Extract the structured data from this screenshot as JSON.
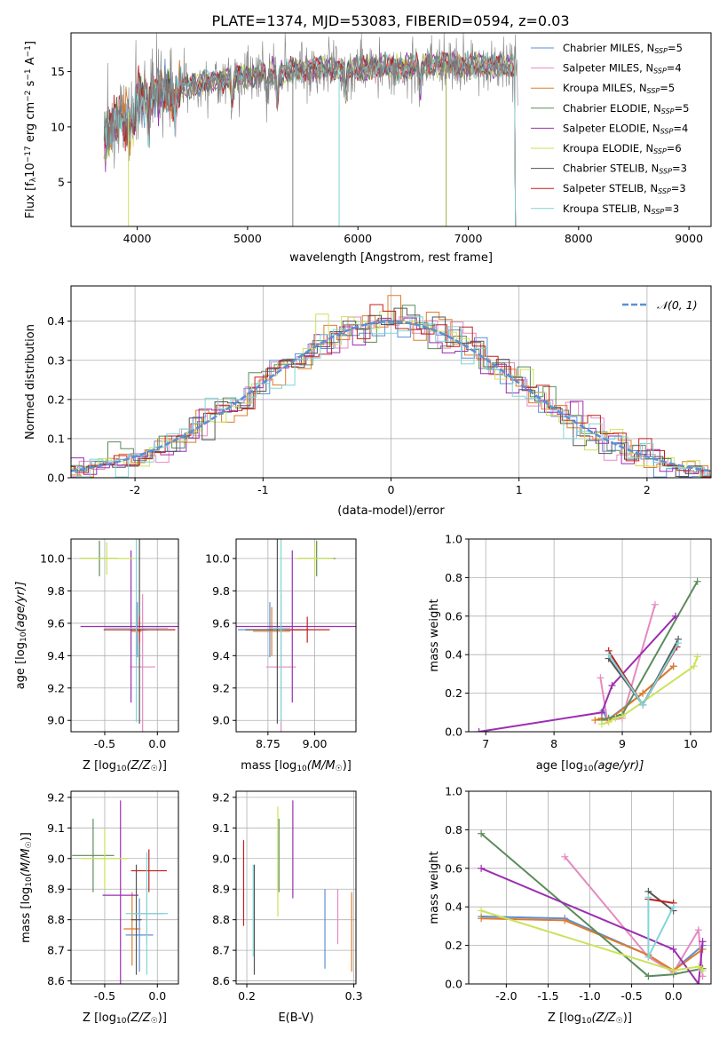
{
  "figure_title": "PLATE=1374, MJD=53083, FIBERID=0594, z=0.03",
  "colors": {
    "chabrier_miles": "#5b8fd6",
    "salpeter_miles": "#e48bc0",
    "kroupa_miles": "#e07b2a",
    "chabrier_elodie": "#5c8c5c",
    "salpeter_elodie": "#9b2fb0",
    "kroupa_elodie": "#cce25a",
    "chabrier_stelib": "#555555",
    "salpeter_stelib": "#c0201e",
    "kroupa_stelib": "#7fd6d8"
  },
  "chart_data": [
    {
      "type": "line",
      "title": "PLATE=1374, MJD=53083, FIBERID=0594, z=0.03",
      "xlabel": "wavelength [Angstrom, rest frame]",
      "ylabel_main": "Flux [f",
      "ylabel_sub": "λ",
      "ylabel_rest": "10",
      "ylabel_exp1": "−17",
      "ylabel_units": " erg cm",
      "ylabel_exp2": "−2",
      "ylabel_s": " s",
      "ylabel_exp3": "−1",
      "ylabel_a": " A",
      "ylabel_exp4": "−1",
      "ylabel_end": "]",
      "xlim": [
        3400,
        9200
      ],
      "ylim": [
        1,
        18.5
      ],
      "xticks": [
        4000,
        5000,
        6000,
        7000,
        8000,
        9000
      ],
      "yticks": [
        5,
        10,
        15
      ],
      "grid": false,
      "legend_position": "top-right",
      "legend": [
        {
          "label": "Chabrier MILES, N",
          "sub": "SSP",
          "suffix": "=5",
          "color_key": "chabrier_miles"
        },
        {
          "label": "Salpeter MILES, N",
          "sub": "SSP",
          "suffix": "=4",
          "color_key": "salpeter_miles"
        },
        {
          "label": "Kroupa MILES, N",
          "sub": "SSP",
          "suffix": "=5",
          "color_key": "kroupa_miles"
        },
        {
          "label": "Chabrier ELODIE, N",
          "sub": "SSP",
          "suffix": "=5",
          "color_key": "chabrier_elodie"
        },
        {
          "label": "Salpeter ELODIE, N",
          "sub": "SSP",
          "suffix": "=4",
          "color_key": "salpeter_elodie"
        },
        {
          "label": "Kroupa ELODIE, N",
          "sub": "SSP",
          "suffix": "=6",
          "color_key": "kroupa_elodie"
        },
        {
          "label": "Chabrier STELIB, N",
          "sub": "SSP",
          "suffix": "=3",
          "color_key": "chabrier_stelib"
        },
        {
          "label": "Salpeter STELIB, N",
          "sub": "SSP",
          "suffix": "=3",
          "color_key": "salpeter_stelib"
        },
        {
          "label": "Kroupa STELIB, N",
          "sub": "SSP",
          "suffix": "=3",
          "color_key": "kroupa_stelib"
        }
      ],
      "continuum": {
        "x": [
          3700,
          3800,
          3900,
          4000,
          4100,
          4200,
          4300,
          4400,
          4600,
          4800,
          5000,
          5200,
          5400,
          5600,
          5800,
          6000,
          6200,
          6400,
          6600,
          6800,
          7000,
          7200,
          7400
        ],
        "y": [
          9.0,
          10.5,
          11.0,
          12.5,
          12.8,
          13.3,
          12.8,
          13.6,
          14.0,
          14.3,
          14.6,
          14.8,
          15.0,
          15.3,
          15.3,
          15.2,
          15.5,
          15.3,
          15.6,
          15.7,
          15.5,
          15.6,
          15.4
        ]
      }
    },
    {
      "type": "histogram",
      "xlabel": "(data-model)/error",
      "ylabel": "Normed distribution",
      "xlim": [
        -2.5,
        2.5
      ],
      "ylim": [
        0,
        0.49
      ],
      "xticks": [
        -2,
        -1,
        0,
        1,
        2
      ],
      "yticks": [
        0.0,
        0.1,
        0.2,
        0.3,
        0.4
      ],
      "grid": true,
      "legend_position": "top-right",
      "legend_label": "𝒩(0, 1)",
      "gaussian": {
        "mean": 0,
        "sigma": 1,
        "color": "#5b8fd6"
      }
    },
    {
      "type": "errorbar",
      "xlabel": "Z [log",
      "xlabel_sub": "10",
      "xlabel_rest": "(Z/Z",
      "xlabel_sun": "☉",
      "xlabel_end": ")]",
      "ylabel": "age  [log",
      "ylabel_sub": "10",
      "ylabel_rest": "(age/yr)]",
      "xlim": [
        -0.82,
        0.2
      ],
      "ylim": [
        8.93,
        10.12
      ],
      "xticks": [
        -0.5,
        0.0
      ],
      "yticks": [
        9.0,
        9.2,
        9.4,
        9.6,
        9.8,
        10.0
      ],
      "grid": true,
      "points": [
        {
          "color_key": "chabrier_miles",
          "x": -0.19,
          "xerr": 0.08,
          "y": 9.56,
          "yerr": 0.17
        },
        {
          "color_key": "salpeter_miles",
          "x": -0.14,
          "xerr": 0.12,
          "y": 9.33,
          "yerr": 0.45
        },
        {
          "color_key": "kroupa_miles",
          "x": -0.2,
          "xerr": 0.05,
          "y": 9.55,
          "yerr": 0.15
        },
        {
          "color_key": "chabrier_elodie",
          "x": -0.55,
          "xerr": 0.18,
          "y": 10.0,
          "yerr": 0.11
        },
        {
          "color_key": "salpeter_elodie",
          "x": -0.25,
          "xerr": 0.48,
          "y": 9.58,
          "yerr": 0.47
        },
        {
          "color_key": "kroupa_elodie",
          "x": -0.48,
          "xerr": 0.26,
          "y": 10.0,
          "yerr": 0.1
        },
        {
          "color_key": "chabrier_stelib",
          "x": -0.17,
          "xerr": 0.07,
          "y": 9.56,
          "yerr": 0.58
        },
        {
          "color_key": "salpeter_stelib",
          "x": -0.17,
          "xerr": 0.34,
          "y": 9.56,
          "yerr": 0.08
        },
        {
          "color_key": "kroupa_stelib",
          "x": -0.2,
          "xerr": 0.3,
          "y": 9.57,
          "yerr": 0.58
        }
      ]
    },
    {
      "type": "errorbar",
      "xlabel": "mass [log",
      "xlabel_sub": "10",
      "xlabel_rest": "(M/M",
      "xlabel_sun": "☉",
      "xlabel_end": ")]",
      "xlim": [
        8.58,
        9.22
      ],
      "ylim": [
        8.93,
        10.12
      ],
      "xticks": [
        8.75,
        9.0
      ],
      "yticks": [
        9.0,
        9.2,
        9.4,
        9.6,
        9.8,
        10.0
      ],
      "grid": true,
      "points": [
        {
          "color_key": "chabrier_miles",
          "x": 8.76,
          "xerr": 0.17,
          "y": 9.56,
          "yerr": 0.17
        },
        {
          "color_key": "salpeter_miles",
          "x": 8.82,
          "xerr": 0.08,
          "y": 9.33,
          "yerr": 0.45
        },
        {
          "color_key": "kroupa_miles",
          "x": 8.77,
          "xerr": 0.1,
          "y": 9.55,
          "yerr": 0.15
        },
        {
          "color_key": "chabrier_elodie",
          "x": 9.01,
          "xerr": 0.1,
          "y": 10.0,
          "yerr": 0.11
        },
        {
          "color_key": "salpeter_elodie",
          "x": 8.88,
          "xerr": 0.35,
          "y": 9.58,
          "yerr": 0.47
        },
        {
          "color_key": "kroupa_elodie",
          "x": 9.0,
          "xerr": 0.1,
          "y": 10.0,
          "yerr": 0.1
        },
        {
          "color_key": "chabrier_stelib",
          "x": 8.8,
          "xerr": 0.17,
          "y": 9.56,
          "yerr": 0.58
        },
        {
          "color_key": "salpeter_stelib",
          "x": 8.96,
          "xerr": 0.12,
          "y": 9.56,
          "yerr": 0.08
        },
        {
          "color_key": "kroupa_stelib",
          "x": 8.82,
          "xerr": 0.05,
          "y": 9.57,
          "yerr": 0.58
        }
      ]
    },
    {
      "type": "line",
      "xlabel": "age  [log",
      "xlabel_sub": "10",
      "xlabel_rest": "(age/yr)]",
      "ylabel": "mass weight",
      "xlim": [
        6.75,
        10.3
      ],
      "ylim": [
        0,
        1.0
      ],
      "xticks": [
        7,
        8,
        9,
        10
      ],
      "yticks": [
        0.0,
        0.2,
        0.4,
        0.6,
        0.8,
        1.0
      ],
      "grid": true,
      "series": [
        {
          "color_key": "chabrier_miles",
          "x": [
            8.72,
            8.78,
            9.3,
            9.75
          ],
          "y": [
            0.11,
            0.06,
            0.2,
            0.34
          ]
        },
        {
          "color_key": "salpeter_miles",
          "x": [
            8.68,
            8.78,
            9.0,
            9.48
          ],
          "y": [
            0.28,
            0.06,
            0.07,
            0.66
          ]
        },
        {
          "color_key": "kroupa_miles",
          "x": [
            8.6,
            8.7,
            8.8,
            9.3,
            9.75
          ],
          "y": [
            0.06,
            0.07,
            0.06,
            0.2,
            0.34
          ]
        },
        {
          "color_key": "chabrier_elodie",
          "x": [
            8.7,
            8.8,
            9.0,
            10.1
          ],
          "y": [
            0.06,
            0.07,
            0.09,
            0.78
          ]
        },
        {
          "color_key": "salpeter_elodie",
          "x": [
            6.9,
            8.7,
            8.85,
            9.78
          ],
          "y": [
            0.0,
            0.1,
            0.24,
            0.6
          ]
        },
        {
          "color_key": "kroupa_elodie",
          "x": [
            8.7,
            8.8,
            8.9,
            9.0,
            10.05,
            10.1
          ],
          "y": [
            0.04,
            0.05,
            0.07,
            0.08,
            0.34,
            0.39
          ]
        },
        {
          "color_key": "chabrier_stelib",
          "x": [
            8.8,
            9.3,
            9.82
          ],
          "y": [
            0.38,
            0.14,
            0.48
          ]
        },
        {
          "color_key": "salpeter_stelib",
          "x": [
            8.8,
            9.3,
            9.8
          ],
          "y": [
            0.42,
            0.14,
            0.44
          ]
        },
        {
          "color_key": "kroupa_stelib",
          "x": [
            8.8,
            9.3,
            9.82
          ],
          "y": [
            0.4,
            0.14,
            0.46
          ]
        }
      ]
    },
    {
      "type": "errorbar",
      "xlabel": "Z [log",
      "xlabel_sub": "10",
      "xlabel_rest": "(Z/Z",
      "xlabel_sun": "☉",
      "xlabel_end": ")]",
      "ylabel": "mass [log",
      "ylabel_sub": "10",
      "ylabel_rest": "(M/M",
      "ylabel_sun": "☉",
      "ylabel_end": ")]",
      "xlim": [
        -0.82,
        0.2
      ],
      "ylim": [
        8.59,
        9.22
      ],
      "xticks": [
        -0.5,
        0.0
      ],
      "yticks": [
        8.6,
        8.7,
        8.8,
        8.9,
        9.0,
        9.1,
        9.2
      ],
      "grid": true,
      "points": [
        {
          "color_key": "chabrier_miles",
          "x": -0.17,
          "xerr": 0.13,
          "y": 8.75,
          "yerr": 0.12
        },
        {
          "color_key": "salpeter_miles",
          "x": -0.1,
          "xerr": 0.15,
          "y": 8.82,
          "yerr": 0.1
        },
        {
          "color_key": "kroupa_miles",
          "x": -0.24,
          "xerr": 0.08,
          "y": 8.77,
          "yerr": 0.12
        },
        {
          "color_key": "chabrier_elodie",
          "x": -0.61,
          "xerr": 0.2,
          "y": 9.01,
          "yerr": 0.12
        },
        {
          "color_key": "salpeter_elodie",
          "x": -0.35,
          "xerr": 0.17,
          "y": 8.88,
          "yerr": 0.31
        },
        {
          "color_key": "kroupa_elodie",
          "x": -0.5,
          "xerr": 0.22,
          "y": 9.0,
          "yerr": 0.1
        },
        {
          "color_key": "chabrier_stelib",
          "x": -0.2,
          "xerr": 0.05,
          "y": 8.8,
          "yerr": 0.18
        },
        {
          "color_key": "salpeter_stelib",
          "x": -0.08,
          "xerr": 0.17,
          "y": 8.96,
          "yerr": 0.07
        },
        {
          "color_key": "kroupa_stelib",
          "x": -0.1,
          "xerr": 0.2,
          "y": 8.82,
          "yerr": 0.2
        }
      ]
    },
    {
      "type": "errorbar",
      "xlabel": "E(B-V)",
      "xlim": [
        0.19,
        0.302
      ],
      "ylim": [
        8.59,
        9.22
      ],
      "xticks": [
        0.2,
        0.3
      ],
      "yticks": [
        8.6,
        8.7,
        8.8,
        8.9,
        9.0,
        9.1,
        9.2
      ],
      "grid": true,
      "points": [
        {
          "color_key": "chabrier_miles",
          "x": 0.273,
          "y": 8.77,
          "yerr": 0.13
        },
        {
          "color_key": "salpeter_miles",
          "x": 0.285,
          "y": 8.81,
          "yerr": 0.09
        },
        {
          "color_key": "kroupa_miles",
          "x": 0.298,
          "y": 8.76,
          "yerr": 0.13
        },
        {
          "color_key": "chabrier_elodie",
          "x": 0.23,
          "y": 9.01,
          "yerr": 0.12
        },
        {
          "color_key": "salpeter_elodie",
          "x": 0.243,
          "y": 9.03,
          "yerr": 0.16
        },
        {
          "color_key": "kroupa_elodie",
          "x": 0.229,
          "y": 8.99,
          "yerr": 0.18
        },
        {
          "color_key": "chabrier_stelib",
          "x": 0.207,
          "y": 8.8,
          "yerr": 0.18
        },
        {
          "color_key": "salpeter_stelib",
          "x": 0.197,
          "y": 8.92,
          "yerr": 0.14
        },
        {
          "color_key": "kroupa_stelib",
          "x": 0.206,
          "y": 8.83,
          "yerr": 0.15
        }
      ]
    },
    {
      "type": "line",
      "xlabel": "Z [log",
      "xlabel_sub": "10",
      "xlabel_rest": "(Z/Z",
      "xlabel_sun": "☉",
      "xlabel_end": ")]",
      "ylabel": "mass weight",
      "xlim": [
        -2.45,
        0.45
      ],
      "ylim": [
        0,
        1.0
      ],
      "xticks": [
        -2.0,
        -1.5,
        -1.0,
        -0.5,
        0.0
      ],
      "yticks": [
        0.0,
        0.2,
        0.4,
        0.6,
        0.8,
        1.0
      ],
      "grid": true,
      "series": [
        {
          "color_key": "chabrier_miles",
          "x": [
            -2.3,
            -1.3,
            -0.3,
            0.0,
            0.35
          ],
          "y": [
            0.35,
            0.34,
            0.15,
            0.07,
            0.2
          ]
        },
        {
          "color_key": "salpeter_miles",
          "x": [
            -1.3,
            -0.3,
            0.0,
            0.3,
            0.35
          ],
          "y": [
            0.66,
            0.14,
            0.06,
            0.28,
            0.04
          ]
        },
        {
          "color_key": "kroupa_miles",
          "x": [
            -2.3,
            -1.3,
            -0.3,
            0.0,
            0.35
          ],
          "y": [
            0.34,
            0.33,
            0.15,
            0.07,
            0.18
          ]
        },
        {
          "color_key": "chabrier_elodie",
          "x": [
            -2.3,
            -0.3,
            0.0,
            0.35
          ],
          "y": [
            0.78,
            0.04,
            0.05,
            0.08
          ]
        },
        {
          "color_key": "salpeter_elodie",
          "x": [
            -2.3,
            0.0,
            0.3,
            0.35
          ],
          "y": [
            0.6,
            0.18,
            0.0,
            0.22
          ]
        },
        {
          "color_key": "kroupa_elodie",
          "x": [
            -2.3,
            0.0,
            0.3,
            0.35
          ],
          "y": [
            0.38,
            0.07,
            0.09,
            0.07
          ]
        },
        {
          "color_key": "chabrier_stelib",
          "x": [
            -0.3,
            0.0
          ],
          "y": [
            0.48,
            0.38
          ]
        },
        {
          "color_key": "salpeter_stelib",
          "x": [
            -0.3,
            0.0
          ],
          "y": [
            0.44,
            0.42
          ]
        },
        {
          "color_key": "kroupa_stelib",
          "x": [
            -0.3,
            -0.3,
            0.0
          ],
          "y": [
            0.45,
            0.14,
            0.4
          ]
        }
      ]
    }
  ]
}
